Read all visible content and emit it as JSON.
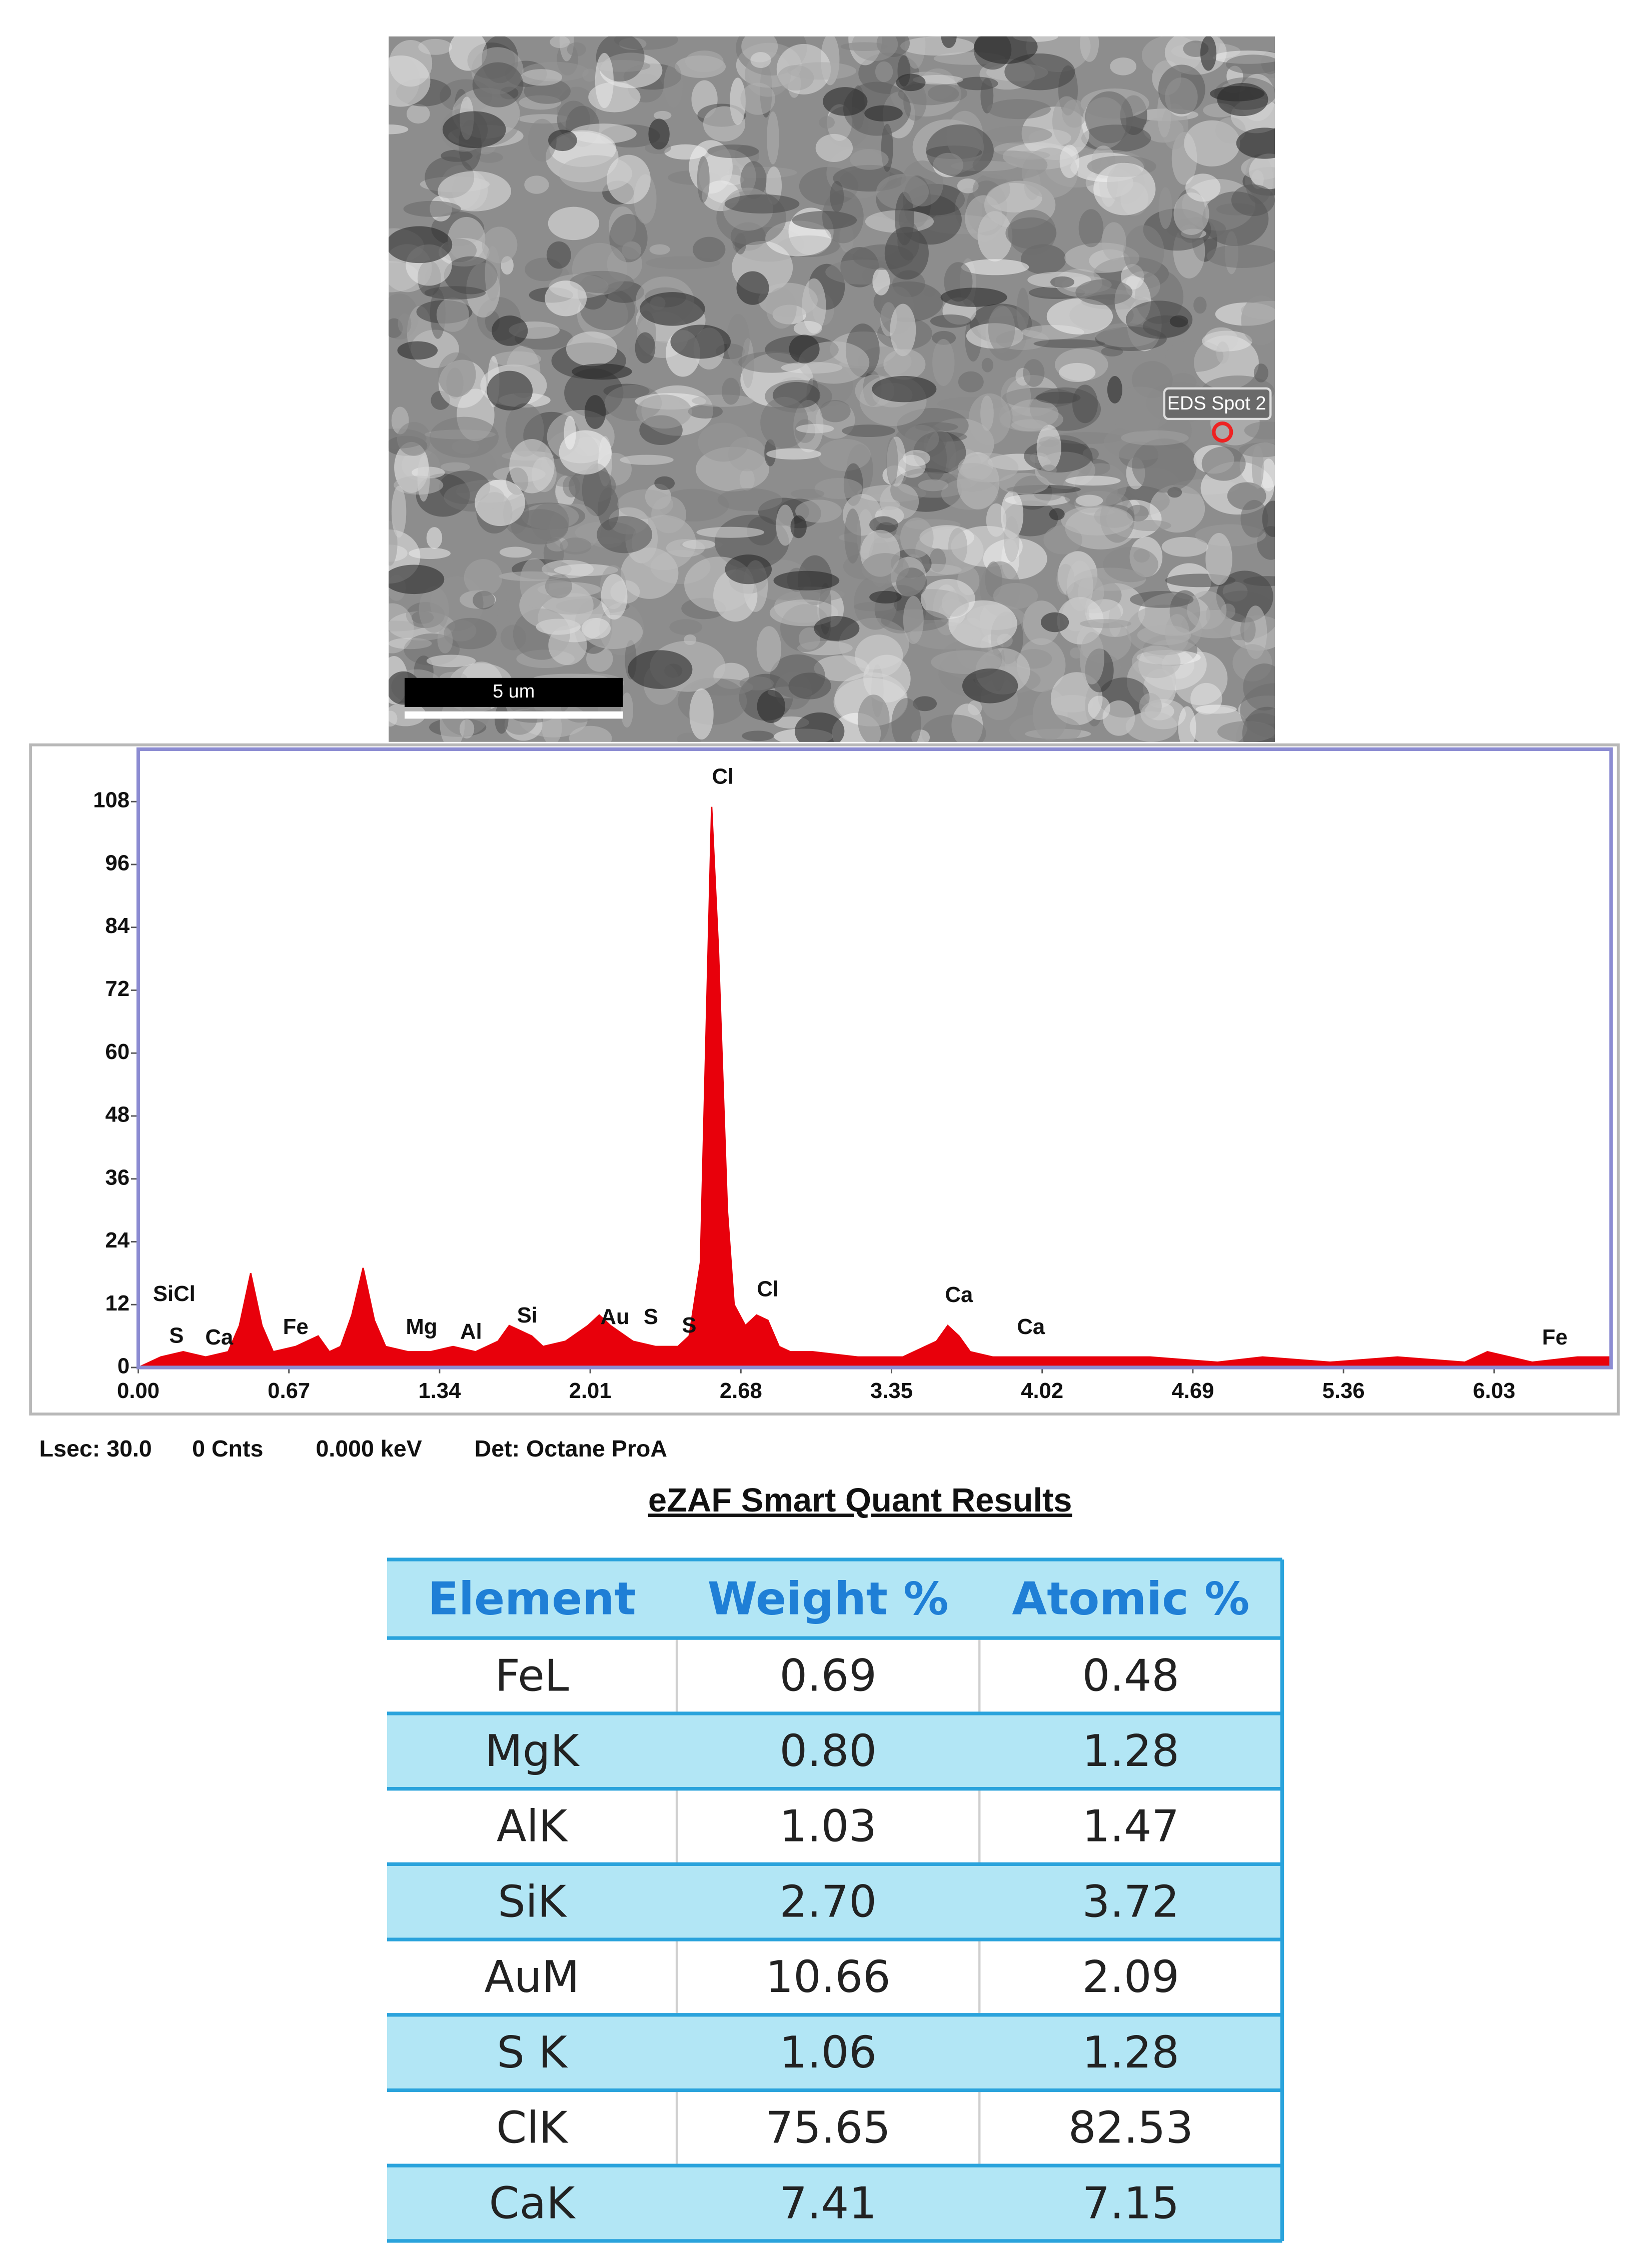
{
  "chart_data": {
    "type": "area",
    "x": [
      0.0,
      0.1,
      0.2,
      0.3,
      0.4,
      0.45,
      0.5,
      0.55,
      0.6,
      0.7,
      0.8,
      0.85,
      0.9,
      0.95,
      1.0,
      1.05,
      1.1,
      1.2,
      1.3,
      1.4,
      1.5,
      1.6,
      1.65,
      1.7,
      1.75,
      1.8,
      1.9,
      2.0,
      2.05,
      2.1,
      2.2,
      2.3,
      2.4,
      2.45,
      2.5,
      2.55,
      2.58,
      2.62,
      2.65,
      2.7,
      2.75,
      2.8,
      2.85,
      2.9,
      3.0,
      3.2,
      3.4,
      3.55,
      3.6,
      3.65,
      3.7,
      3.8,
      4.0,
      4.2,
      4.5,
      4.8,
      5.0,
      5.3,
      5.6,
      5.9,
      6.0,
      6.2,
      6.4,
      6.55
    ],
    "values": [
      0,
      2,
      3,
      2,
      3,
      8,
      18,
      8,
      3,
      4,
      6,
      3,
      4,
      10,
      19,
      9,
      4,
      3,
      3,
      4,
      3,
      5,
      8,
      7,
      6,
      4,
      5,
      8,
      10,
      8,
      5,
      4,
      4,
      6,
      20,
      107,
      80,
      30,
      12,
      8,
      10,
      9,
      4,
      3,
      3,
      2,
      2,
      5,
      8,
      6,
      3,
      2,
      2,
      2,
      2,
      1,
      2,
      1,
      2,
      1,
      3,
      1,
      2,
      2
    ],
    "color": "#e8000b",
    "xlim": [
      0,
      6.55
    ],
    "ylim": [
      0,
      118
    ],
    "xticks": [
      {
        "value": 0,
        "label": "0.00"
      },
      0.67,
      1.34,
      2.01,
      2.68,
      3.35,
      4.02,
      4.69,
      5.36,
      6.03
    ],
    "yticks": [
      0,
      12,
      24,
      36,
      48,
      60,
      72,
      84,
      96,
      108
    ],
    "peak_labels": [
      {
        "label": "SiCl",
        "x": 0.16,
        "y": 13.8
      },
      {
        "label": "S",
        "x": 0.17,
        "y": 5.8
      },
      {
        "label": "Ca",
        "x": 0.36,
        "y": 5.5
      },
      {
        "label": "Fe",
        "x": 0.7,
        "y": 7.5
      },
      {
        "label": "Mg",
        "x": 1.26,
        "y": 7.5
      },
      {
        "label": "Al",
        "x": 1.48,
        "y": 6.6
      },
      {
        "label": "Si",
        "x": 1.73,
        "y": 9.7
      },
      {
        "label": "Au",
        "x": 2.12,
        "y": 9.4
      },
      {
        "label": "S",
        "x": 2.28,
        "y": 9.4
      },
      {
        "label": "S",
        "x": 2.45,
        "y": 7.8
      },
      {
        "label": "Cl",
        "x": 2.6,
        "y": 112.5
      },
      {
        "label": "Cl",
        "x": 2.8,
        "y": 14.7
      },
      {
        "label": "Ca",
        "x": 3.65,
        "y": 13.6
      },
      {
        "label": "Ca",
        "x": 3.97,
        "y": 7.5
      },
      {
        "label": "Fe",
        "x": 6.3,
        "y": 5.5
      }
    ]
  },
  "image": {
    "spot_label": "EDS Spot 2",
    "scale_bar": "5 um"
  },
  "status_line": [
    "Lsec: 30.0",
    "0 Cnts",
    "0.000 keV",
    "Det: Octane ProA"
  ],
  "table": {
    "title": "eZAF Smart Quant Results",
    "columns": [
      "Element",
      "Weight %",
      "Atomic %"
    ],
    "rows": [
      [
        "FeL",
        "0.69",
        "0.48"
      ],
      [
        "MgK",
        "0.80",
        "1.28"
      ],
      [
        "AlK",
        "1.03",
        "1.47"
      ],
      [
        "SiK",
        "2.70",
        "3.72"
      ],
      [
        "AuM",
        "10.66",
        "2.09"
      ],
      [
        "S K",
        "1.06",
        "1.28"
      ],
      [
        "ClK",
        "75.65",
        "82.53"
      ],
      [
        "CaK",
        "7.41",
        "7.15"
      ]
    ]
  }
}
